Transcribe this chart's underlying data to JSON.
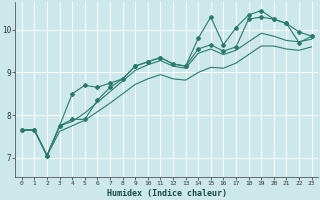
{
  "xlabel": "Humidex (Indice chaleur)",
  "background_color": "#cce8ea",
  "grid_color": "#ffffff",
  "line_color": "#2a7a6e",
  "xlim": [
    -0.5,
    23.5
  ],
  "ylim": [
    6.55,
    10.65
  ],
  "xticks": [
    0,
    1,
    2,
    3,
    4,
    5,
    6,
    7,
    8,
    9,
    10,
    11,
    12,
    13,
    14,
    15,
    16,
    17,
    18,
    19,
    20,
    21,
    22,
    23
  ],
  "yticks": [
    7,
    8,
    9,
    10
  ],
  "line1_x": [
    0,
    1,
    2,
    3,
    4,
    5,
    6,
    7,
    8,
    9,
    10,
    11,
    12,
    13,
    14,
    15,
    16,
    17,
    18,
    19,
    20,
    21,
    22,
    23
  ],
  "line1_y": [
    7.65,
    7.65,
    7.05,
    7.75,
    8.5,
    8.7,
    8.65,
    8.75,
    8.85,
    9.15,
    9.25,
    9.35,
    9.2,
    9.15,
    9.8,
    10.3,
    9.65,
    10.05,
    10.35,
    10.45,
    10.25,
    10.15,
    9.7,
    9.85
  ],
  "line2_x": [
    0,
    1,
    2,
    3,
    4,
    5,
    6,
    7,
    8,
    9,
    10,
    11,
    12,
    13,
    14,
    15,
    16,
    17,
    18,
    19,
    20,
    21,
    22,
    23
  ],
  "line2_y": [
    7.65,
    7.65,
    7.05,
    7.75,
    7.9,
    7.9,
    8.35,
    8.65,
    8.85,
    9.15,
    9.25,
    9.35,
    9.2,
    9.15,
    9.55,
    9.65,
    9.5,
    9.6,
    10.25,
    10.3,
    10.25,
    10.15,
    9.95,
    9.85
  ],
  "line3_x": [
    0,
    1,
    2,
    3,
    4,
    5,
    6,
    7,
    8,
    9,
    10,
    11,
    12,
    13,
    14,
    15,
    16,
    17,
    18,
    19,
    20,
    21,
    22,
    23
  ],
  "line3_y": [
    7.65,
    7.65,
    7.05,
    7.75,
    7.85,
    8.05,
    8.3,
    8.55,
    8.8,
    9.05,
    9.18,
    9.28,
    9.15,
    9.1,
    9.45,
    9.55,
    9.42,
    9.52,
    9.72,
    9.92,
    9.85,
    9.75,
    9.72,
    9.78
  ],
  "line4_x": [
    0,
    1,
    2,
    3,
    4,
    5,
    6,
    7,
    8,
    9,
    10,
    11,
    12,
    13,
    14,
    15,
    16,
    17,
    18,
    19,
    20,
    21,
    22,
    23
  ],
  "line4_y": [
    7.65,
    7.65,
    7.05,
    7.62,
    7.75,
    7.88,
    8.08,
    8.28,
    8.5,
    8.72,
    8.85,
    8.95,
    8.85,
    8.82,
    9.0,
    9.12,
    9.1,
    9.22,
    9.42,
    9.62,
    9.62,
    9.55,
    9.52,
    9.6
  ]
}
